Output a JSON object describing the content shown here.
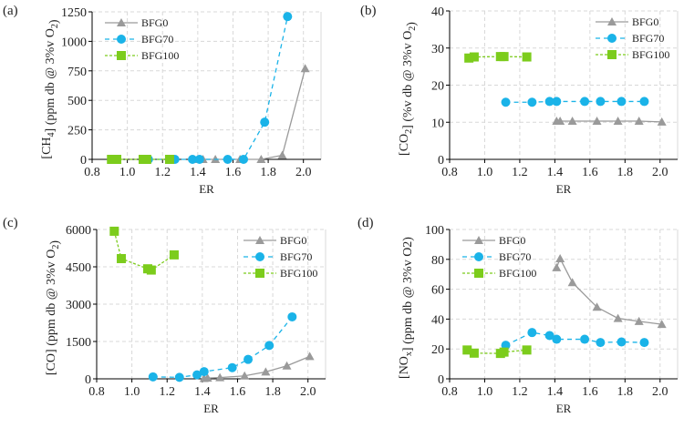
{
  "chart_data": [
    {
      "panel_label": "(a)",
      "type": "line",
      "xlabel": "ER",
      "ylabel_parts": [
        [
          "[CH",
          ""
        ],
        [
          "4",
          "sub"
        ],
        [
          "] (ppm db @ 3%v O",
          ""
        ],
        [
          "2",
          "sub"
        ],
        [
          ")",
          ""
        ]
      ],
      "xlim": [
        0.8,
        2.1
      ],
      "ylim": [
        0,
        1250
      ],
      "xticks": [
        "0.8",
        "1.0",
        "1.2",
        "1.4",
        "1.6",
        "1.8",
        "2.0"
      ],
      "yticks": [
        "0",
        "250",
        "500",
        "750",
        "1000",
        "1250"
      ],
      "grid": true,
      "legend": "top-left",
      "series": [
        {
          "name": "BFG0",
          "x": [
            1.41,
            1.43,
            1.5,
            1.64,
            1.76,
            1.88,
            2.01
          ],
          "y": [
            0,
            0,
            0,
            0,
            0,
            35,
            770
          ]
        },
        {
          "name": "BFG70",
          "x": [
            1.12,
            1.27,
            1.37,
            1.41,
            1.57,
            1.66,
            1.78,
            1.91
          ],
          "y": [
            0,
            0,
            0,
            0,
            0,
            0,
            315,
            1210
          ]
        },
        {
          "name": "BFG100",
          "x": [
            0.91,
            0.94,
            1.09,
            1.11,
            1.24
          ],
          "y": [
            0,
            0,
            0,
            0,
            0
          ]
        }
      ]
    },
    {
      "panel_label": "(b)",
      "type": "line",
      "xlabel": "ER",
      "ylabel_parts": [
        [
          "[CO",
          ""
        ],
        [
          "2",
          "sub"
        ],
        [
          "] (%v db @ 3%v O",
          ""
        ],
        [
          "2",
          "sub"
        ],
        [
          ")",
          ""
        ]
      ],
      "xlim": [
        0.8,
        2.1
      ],
      "ylim": [
        0,
        40
      ],
      "xticks": [
        "0.8",
        "1.0",
        "1.2",
        "1.4",
        "1.6",
        "1.8",
        "2.0"
      ],
      "yticks": [
        "0",
        "10",
        "20",
        "30",
        "40"
      ],
      "grid": true,
      "legend": "top-right",
      "series": [
        {
          "name": "BFG0",
          "x": [
            1.41,
            1.43,
            1.5,
            1.64,
            1.76,
            1.88,
            2.01
          ],
          "y": [
            10.3,
            10.3,
            10.3,
            10.3,
            10.3,
            10.3,
            10.1
          ]
        },
        {
          "name": "BFG70",
          "x": [
            1.12,
            1.27,
            1.37,
            1.41,
            1.57,
            1.66,
            1.78,
            1.91
          ],
          "y": [
            15.4,
            15.4,
            15.6,
            15.6,
            15.6,
            15.6,
            15.6,
            15.6
          ]
        },
        {
          "name": "BFG100",
          "x": [
            0.91,
            0.94,
            1.09,
            1.11,
            1.24
          ],
          "y": [
            27.3,
            27.6,
            27.7,
            27.7,
            27.6
          ]
        }
      ]
    },
    {
      "panel_label": "(c)",
      "type": "line",
      "xlabel": "ER",
      "ylabel_parts": [
        [
          "[CO] (ppm db @ 3%v O",
          ""
        ],
        [
          "2",
          "sub"
        ],
        [
          ")",
          ""
        ]
      ],
      "xlim": [
        0.8,
        2.1
      ],
      "ylim": [
        0,
        6000
      ],
      "xticks": [
        "0.8",
        "1.0",
        "1.2",
        "1.4",
        "1.6",
        "1.8",
        "2.0"
      ],
      "yticks": [
        "0",
        "1500",
        "3000",
        "4500",
        "6000"
      ],
      "grid": true,
      "legend": "top-right",
      "series": [
        {
          "name": "BFG0",
          "x": [
            1.41,
            1.43,
            1.5,
            1.64,
            1.76,
            1.88,
            2.01
          ],
          "y": [
            20,
            30,
            50,
            120,
            280,
            520,
            900
          ]
        },
        {
          "name": "BFG70",
          "x": [
            1.12,
            1.27,
            1.37,
            1.41,
            1.57,
            1.66,
            1.78,
            1.91
          ],
          "y": [
            80,
            60,
            160,
            290,
            450,
            780,
            1340,
            2490
          ]
        },
        {
          "name": "BFG100",
          "x": [
            0.9,
            0.94,
            1.09,
            1.11,
            1.24
          ],
          "y": [
            5930,
            4830,
            4420,
            4370,
            4980
          ]
        }
      ]
    },
    {
      "panel_label": "(d)",
      "type": "line",
      "xlabel": "ER",
      "ylabel_parts": [
        [
          "[NO",
          ""
        ],
        [
          "x",
          "sub"
        ],
        [
          "] (ppm db @ 3%v O2)",
          ""
        ]
      ],
      "xlim": [
        0.8,
        2.1
      ],
      "ylim": [
        0,
        100
      ],
      "xticks": [
        "0.8",
        "1.0",
        "1.2",
        "1.4",
        "1.6",
        "1.8",
        "2.0"
      ],
      "yticks": [
        "0",
        "20",
        "40",
        "60",
        "80",
        "100"
      ],
      "grid": true,
      "legend": "top-left",
      "series": [
        {
          "name": "BFG0",
          "x": [
            1.41,
            1.43,
            1.5,
            1.64,
            1.76,
            1.88,
            2.01
          ],
          "y": [
            74.5,
            80.5,
            64.5,
            48,
            40.5,
            38.5,
            36.5
          ]
        },
        {
          "name": "BFG70",
          "x": [
            1.12,
            1.27,
            1.37,
            1.41,
            1.57,
            1.66,
            1.78,
            1.91
          ],
          "y": [
            22.5,
            31,
            29,
            26.5,
            26.5,
            24.3,
            24.7,
            24.3
          ]
        },
        {
          "name": "BFG100",
          "x": [
            0.9,
            0.94,
            1.09,
            1.11,
            1.24
          ],
          "y": [
            19.3,
            17.2,
            17,
            17.9,
            19.3
          ]
        }
      ]
    }
  ],
  "series_style": {
    "BFG0": {
      "color": "#9a9a9a",
      "marker": "triangle",
      "dash": "none"
    },
    "BFG70": {
      "color": "#1ab3e8",
      "marker": "circle",
      "dash": "5,4"
    },
    "BFG100": {
      "color": "#7ccc1c",
      "marker": "square",
      "dash": "3,2"
    }
  }
}
